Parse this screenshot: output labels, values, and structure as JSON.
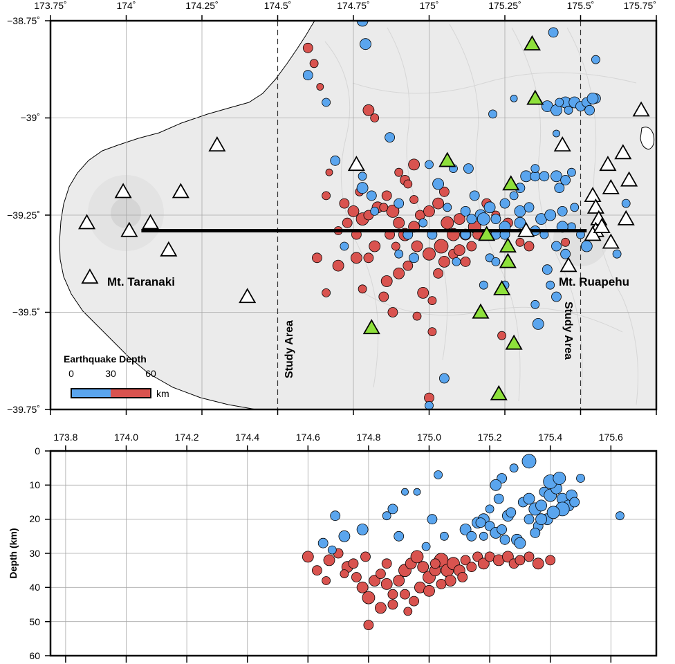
{
  "map": {
    "lon_ticks": [
      "173.75˚",
      "174˚",
      "174.25˚",
      "174.5˚",
      "174.75˚",
      "175˚",
      "175.25˚",
      "175.5˚",
      "175.75˚"
    ],
    "lat_ticks": [
      "−38.75˚",
      "−39˚",
      "−39.25˚",
      "−39.5˚",
      "−39.75˚"
    ],
    "lon_range": [
      173.75,
      175.75
    ],
    "lat_range": [
      -39.75,
      -38.75
    ],
    "volcano_labels": {
      "taranaki": "Mt. Taranaki",
      "ruapehu": "Mt. Ruapehu"
    },
    "study_area_label": "Study Area",
    "study_area_lon": [
      174.5,
      175.5
    ],
    "profile_line": {
      "lon": [
        174.05,
        175.52
      ],
      "lat": -39.29
    },
    "legend": {
      "title": "Earthquake Depth",
      "ticks": [
        "0",
        "30",
        "60"
      ],
      "unit": "km",
      "shallow_color": "#5aa5ee",
      "deep_color": "#d9534f"
    },
    "stations_white": [
      [
        173.87,
        -39.27
      ],
      [
        173.88,
        -39.41
      ],
      [
        173.99,
        -39.19
      ],
      [
        174.01,
        -39.29
      ],
      [
        174.08,
        -39.27
      ],
      [
        174.14,
        -39.34
      ],
      [
        174.18,
        -39.19
      ],
      [
        174.3,
        -39.07
      ],
      [
        174.4,
        -39.46
      ],
      [
        174.76,
        -39.12
      ],
      [
        175.32,
        -39.29
      ],
      [
        175.44,
        -39.07
      ],
      [
        175.46,
        -39.38
      ],
      [
        175.54,
        -39.2
      ],
      [
        175.55,
        -39.23
      ],
      [
        175.56,
        -39.26
      ],
      [
        175.55,
        -39.29
      ],
      [
        175.54,
        -39.3
      ],
      [
        175.57,
        -39.28
      ],
      [
        175.59,
        -39.12
      ],
      [
        175.6,
        -39.18
      ],
      [
        175.6,
        -39.32
      ],
      [
        175.64,
        -39.09
      ],
      [
        175.65,
        -39.26
      ],
      [
        175.66,
        -39.16
      ],
      [
        175.7,
        -38.98
      ]
    ],
    "stations_green": [
      [
        174.81,
        -39.54
      ],
      [
        175.06,
        -39.11
      ],
      [
        175.17,
        -39.5
      ],
      [
        175.19,
        -39.3
      ],
      [
        175.23,
        -39.71
      ],
      [
        175.24,
        -39.44
      ],
      [
        175.26,
        -39.33
      ],
      [
        175.26,
        -39.37
      ],
      [
        175.27,
        -39.17
      ],
      [
        175.28,
        -39.58
      ],
      [
        175.34,
        -38.81
      ],
      [
        175.35,
        -38.95
      ]
    ],
    "eq_blue": [
      [
        174.78,
        -38.75,
        8
      ],
      [
        174.79,
        -38.81,
        8
      ],
      [
        174.6,
        -38.89,
        7
      ],
      [
        174.66,
        -38.96,
        6
      ],
      [
        174.69,
        -39.11,
        7
      ],
      [
        174.78,
        -39.15,
        6
      ],
      [
        174.87,
        -39.05,
        7
      ],
      [
        174.9,
        -39.22,
        7
      ],
      [
        174.78,
        -39.18,
        8
      ],
      [
        174.81,
        -39.2,
        7
      ],
      [
        174.82,
        -39.24,
        6
      ],
      [
        174.72,
        -39.33,
        6
      ],
      [
        174.95,
        -39.36,
        7
      ],
      [
        175.0,
        -39.12,
        6
      ],
      [
        175.03,
        -39.17,
        8
      ],
      [
        175.08,
        -39.13,
        6
      ],
      [
        175.13,
        -39.13,
        7
      ],
      [
        175.15,
        -39.2,
        7
      ],
      [
        175.17,
        -39.25,
        8
      ],
      [
        175.2,
        -39.23,
        8
      ],
      [
        175.22,
        -39.26,
        7
      ],
      [
        175.25,
        -39.22,
        7
      ],
      [
        175.28,
        -39.2,
        6
      ],
      [
        175.3,
        -39.18,
        7
      ],
      [
        175.32,
        -39.15,
        8
      ],
      [
        175.35,
        -39.15,
        7
      ],
      [
        175.38,
        -39.15,
        7
      ],
      [
        175.42,
        -39.15,
        8
      ],
      [
        175.45,
        -39.16,
        7
      ],
      [
        175.47,
        -39.14,
        6
      ],
      [
        175.43,
        -39.18,
        7
      ],
      [
        175.37,
        -39.26,
        8
      ],
      [
        175.4,
        -39.25,
        8
      ],
      [
        175.44,
        -39.24,
        7
      ],
      [
        175.48,
        -39.23,
        6
      ],
      [
        175.3,
        -39.24,
        8
      ],
      [
        175.33,
        -39.23,
        7
      ],
      [
        175.25,
        -39.28,
        8
      ],
      [
        175.22,
        -39.3,
        7
      ],
      [
        175.18,
        -39.26,
        9
      ],
      [
        175.12,
        -39.24,
        7
      ],
      [
        175.2,
        -39.36,
        6
      ],
      [
        175.25,
        -39.3,
        7
      ],
      [
        175.3,
        -39.27,
        8
      ],
      [
        175.35,
        -39.29,
        7
      ],
      [
        175.38,
        -39.3,
        6
      ],
      [
        175.42,
        -39.33,
        7
      ],
      [
        175.45,
        -39.35,
        7
      ],
      [
        175.47,
        -39.28,
        6
      ],
      [
        175.44,
        -39.28,
        8
      ],
      [
        175.39,
        -38.97,
        8
      ],
      [
        175.42,
        -38.98,
        8
      ],
      [
        175.45,
        -38.96,
        8
      ],
      [
        175.48,
        -38.96,
        8
      ],
      [
        175.5,
        -38.97,
        7
      ],
      [
        175.52,
        -38.96,
        7
      ],
      [
        175.55,
        -38.95,
        7
      ],
      [
        175.43,
        -38.96,
        6
      ],
      [
        175.46,
        -38.98,
        6
      ],
      [
        175.53,
        -38.98,
        7
      ],
      [
        175.54,
        -38.95,
        8
      ],
      [
        175.55,
        -38.85,
        6
      ],
      [
        175.41,
        -38.78,
        7
      ],
      [
        175.21,
        -38.99,
        6
      ],
      [
        175.28,
        -38.95,
        5
      ],
      [
        175.35,
        -39.13,
        6
      ],
      [
        175.42,
        -39.04,
        5
      ],
      [
        175.39,
        -39.39,
        7
      ],
      [
        175.4,
        -39.43,
        6
      ],
      [
        175.42,
        -39.46,
        7
      ],
      [
        175.35,
        -39.48,
        6
      ],
      [
        175.36,
        -39.53,
        8
      ],
      [
        175.18,
        -39.43,
        6
      ],
      [
        175.22,
        -39.37,
        6
      ],
      [
        175.14,
        -39.26,
        7
      ],
      [
        175.12,
        -39.3,
        7
      ],
      [
        175.25,
        -39.43,
        6
      ],
      [
        175.09,
        -39.37,
        6
      ],
      [
        175.01,
        -39.3,
        7
      ],
      [
        174.98,
        -39.27,
        6
      ],
      [
        174.93,
        -39.3,
        7
      ],
      [
        175.06,
        -39.23,
        6
      ],
      [
        174.9,
        -39.35,
        6
      ],
      [
        175.05,
        -39.67,
        7
      ],
      [
        175.0,
        -39.74,
        6
      ],
      [
        175.62,
        -39.35,
        6
      ],
      [
        175.65,
        -39.22,
        6
      ],
      [
        175.5,
        -39.3,
        6
      ],
      [
        175.52,
        -39.33,
        8
      ]
    ],
    "eq_red": [
      [
        174.6,
        -38.82,
        7
      ],
      [
        174.62,
        -38.86,
        6
      ],
      [
        174.64,
        -38.92,
        5
      ],
      [
        174.8,
        -38.98,
        8
      ],
      [
        174.82,
        -39.0,
        6
      ],
      [
        174.67,
        -39.14,
        5
      ],
      [
        174.66,
        -39.2,
        6
      ],
      [
        174.72,
        -39.22,
        7
      ],
      [
        174.75,
        -39.24,
        8
      ],
      [
        174.78,
        -39.26,
        9
      ],
      [
        174.8,
        -39.25,
        7
      ],
      [
        174.83,
        -39.23,
        8
      ],
      [
        174.86,
        -39.2,
        7
      ],
      [
        174.88,
        -39.24,
        9
      ],
      [
        174.9,
        -39.27,
        8
      ],
      [
        174.92,
        -39.3,
        9
      ],
      [
        174.95,
        -39.28,
        8
      ],
      [
        174.97,
        -39.25,
        7
      ],
      [
        175.0,
        -39.24,
        8
      ],
      [
        175.03,
        -39.22,
        8
      ],
      [
        175.06,
        -39.27,
        9
      ],
      [
        175.08,
        -39.3,
        9
      ],
      [
        175.1,
        -39.26,
        8
      ],
      [
        175.12,
        -39.3,
        8
      ],
      [
        175.15,
        -39.28,
        9
      ],
      [
        175.04,
        -39.33,
        10
      ],
      [
        175.0,
        -39.35,
        9
      ],
      [
        174.96,
        -39.33,
        8
      ],
      [
        174.93,
        -39.38,
        7
      ],
      [
        174.9,
        -39.4,
        8
      ],
      [
        174.86,
        -39.42,
        8
      ],
      [
        174.82,
        -39.33,
        8
      ],
      [
        174.8,
        -39.36,
        7
      ],
      [
        174.76,
        -39.3,
        7
      ],
      [
        174.73,
        -39.27,
        7
      ],
      [
        174.7,
        -39.38,
        8
      ],
      [
        174.63,
        -39.36,
        7
      ],
      [
        174.66,
        -39.45,
        6
      ],
      [
        174.76,
        -39.36,
        8
      ],
      [
        174.98,
        -39.45,
        8
      ],
      [
        175.01,
        -39.47,
        6
      ],
      [
        175.03,
        -39.4,
        7
      ],
      [
        175.05,
        -39.37,
        8
      ],
      [
        175.08,
        -39.35,
        7
      ],
      [
        175.1,
        -39.34,
        8
      ],
      [
        175.14,
        -39.33,
        7
      ],
      [
        175.16,
        -39.3,
        7
      ],
      [
        174.85,
        -39.46,
        7
      ],
      [
        174.78,
        -39.44,
        6
      ],
      [
        174.88,
        -39.5,
        7
      ],
      [
        174.96,
        -39.51,
        6
      ],
      [
        175.01,
        -39.55,
        6
      ],
      [
        174.95,
        -39.21,
        6
      ],
      [
        174.92,
        -39.16,
        7
      ],
      [
        174.9,
        -39.14,
        6
      ],
      [
        174.85,
        -39.23,
        6
      ],
      [
        174.87,
        -39.3,
        7
      ],
      [
        174.7,
        -39.29,
        6
      ],
      [
        175.0,
        -39.72,
        7
      ],
      [
        175.24,
        -39.56,
        6
      ],
      [
        175.22,
        -39.25,
        6
      ],
      [
        175.26,
        -39.27,
        7
      ],
      [
        175.3,
        -39.32,
        6
      ],
      [
        175.33,
        -39.33,
        7
      ],
      [
        175.45,
        -39.32,
        6
      ],
      [
        175.19,
        -39.22,
        7
      ],
      [
        175.05,
        -39.19,
        7
      ],
      [
        174.95,
        -39.12,
        8
      ],
      [
        174.93,
        -39.17,
        6
      ],
      [
        174.77,
        -39.19,
        6
      ],
      [
        174.89,
        -39.33,
        6
      ],
      [
        175.12,
        -39.37,
        7
      ]
    ]
  },
  "section": {
    "x_ticks": [
      "173.8",
      "174.0",
      "174.2",
      "174.4",
      "174.6",
      "174.8",
      "175.0",
      "175.2",
      "175.4",
      "175.6"
    ],
    "y_ticks": [
      "0",
      "10",
      "20",
      "30",
      "40",
      "50",
      "60"
    ],
    "ylabel": "Depth (km)",
    "xlim": [
      173.75,
      175.75
    ],
    "ylim": [
      0,
      60
    ],
    "eq_blue": [
      [
        174.69,
        19,
        7
      ],
      [
        174.65,
        27,
        7
      ],
      [
        174.68,
        29,
        6
      ],
      [
        174.72,
        25,
        8
      ],
      [
        174.78,
        23,
        8
      ],
      [
        174.86,
        19,
        6
      ],
      [
        174.88,
        17,
        7
      ],
      [
        174.9,
        25,
        7
      ],
      [
        174.92,
        12,
        5
      ],
      [
        174.96,
        12,
        5
      ],
      [
        174.99,
        28,
        6
      ],
      [
        175.01,
        20,
        7
      ],
      [
        175.03,
        7,
        6
      ],
      [
        175.12,
        23,
        8
      ],
      [
        175.14,
        25,
        7
      ],
      [
        175.16,
        21,
        8
      ],
      [
        175.18,
        20,
        8
      ],
      [
        175.2,
        22,
        7
      ],
      [
        175.22,
        24,
        8
      ],
      [
        175.24,
        23,
        7
      ],
      [
        175.26,
        19,
        8
      ],
      [
        175.27,
        18,
        7
      ],
      [
        175.29,
        26,
        8
      ],
      [
        175.31,
        15,
        7
      ],
      [
        175.33,
        14,
        8
      ],
      [
        175.35,
        17,
        9
      ],
      [
        175.37,
        16,
        8
      ],
      [
        175.38,
        12,
        7
      ],
      [
        175.4,
        13,
        9
      ],
      [
        175.42,
        11,
        8
      ],
      [
        175.44,
        14,
        8
      ],
      [
        175.46,
        16,
        8
      ],
      [
        175.47,
        13,
        8
      ],
      [
        175.39,
        20,
        8
      ],
      [
        175.36,
        22,
        7
      ],
      [
        175.4,
        9,
        10
      ],
      [
        175.43,
        8,
        9
      ],
      [
        175.33,
        3,
        10
      ],
      [
        175.28,
        5,
        6
      ],
      [
        175.24,
        8,
        7
      ],
      [
        175.22,
        10,
        8
      ],
      [
        175.35,
        24,
        7
      ],
      [
        175.3,
        27,
        8
      ],
      [
        175.25,
        26,
        7
      ],
      [
        175.17,
        21,
        7
      ],
      [
        175.2,
        17,
        6
      ],
      [
        175.5,
        8,
        6
      ],
      [
        175.63,
        19,
        6
      ],
      [
        175.44,
        17,
        10
      ],
      [
        175.41,
        18,
        9
      ],
      [
        175.37,
        20,
        8
      ],
      [
        175.33,
        20,
        7
      ],
      [
        175.48,
        15,
        7
      ],
      [
        175.23,
        14,
        7
      ],
      [
        175.18,
        25,
        6
      ],
      [
        175.05,
        25,
        6
      ]
    ],
    "eq_red": [
      [
        174.6,
        31,
        8
      ],
      [
        174.63,
        35,
        7
      ],
      [
        174.67,
        32,
        8
      ],
      [
        174.7,
        30,
        7
      ],
      [
        174.73,
        34,
        8
      ],
      [
        174.76,
        37,
        7
      ],
      [
        174.78,
        40,
        8
      ],
      [
        174.8,
        43,
        9
      ],
      [
        174.82,
        38,
        8
      ],
      [
        174.84,
        36,
        7
      ],
      [
        174.86,
        39,
        8
      ],
      [
        174.88,
        42,
        7
      ],
      [
        174.9,
        38,
        8
      ],
      [
        174.92,
        35,
        9
      ],
      [
        174.94,
        33,
        8
      ],
      [
        174.96,
        31,
        9
      ],
      [
        174.98,
        34,
        8
      ],
      [
        175.0,
        37,
        9
      ],
      [
        175.02,
        35,
        8
      ],
      [
        175.04,
        32,
        10
      ],
      [
        175.06,
        35,
        9
      ],
      [
        175.08,
        33,
        9
      ],
      [
        175.1,
        35,
        8
      ],
      [
        175.12,
        32,
        7
      ],
      [
        175.14,
        34,
        7
      ],
      [
        175.16,
        31,
        7
      ],
      [
        175.18,
        33,
        8
      ],
      [
        175.2,
        31,
        7
      ],
      [
        175.23,
        32,
        8
      ],
      [
        175.26,
        31,
        8
      ],
      [
        175.28,
        33,
        7
      ],
      [
        175.3,
        32,
        7
      ],
      [
        175.33,
        31,
        7
      ],
      [
        175.36,
        33,
        8
      ],
      [
        175.4,
        32,
        7
      ],
      [
        174.8,
        51,
        7
      ],
      [
        174.84,
        46,
        8
      ],
      [
        174.88,
        45,
        7
      ],
      [
        174.92,
        42,
        7
      ],
      [
        174.75,
        33,
        7
      ],
      [
        174.72,
        36,
        6
      ],
      [
        174.66,
        38,
        6
      ],
      [
        174.97,
        40,
        8
      ],
      [
        175.0,
        41,
        8
      ],
      [
        174.95,
        44,
        7
      ],
      [
        175.07,
        38,
        8
      ],
      [
        175.11,
        37,
        7
      ],
      [
        174.86,
        33,
        7
      ],
      [
        174.79,
        31,
        7
      ],
      [
        174.93,
        47,
        6
      ],
      [
        175.04,
        39,
        7
      ],
      [
        175.02,
        33,
        7
      ]
    ]
  },
  "colors": {
    "blue": "#5aa5ee",
    "red": "#d9534f",
    "green": "#8ee03b",
    "land": "#ebebeb",
    "sea": "#ffffff",
    "grid": "#a8a8a8"
  }
}
